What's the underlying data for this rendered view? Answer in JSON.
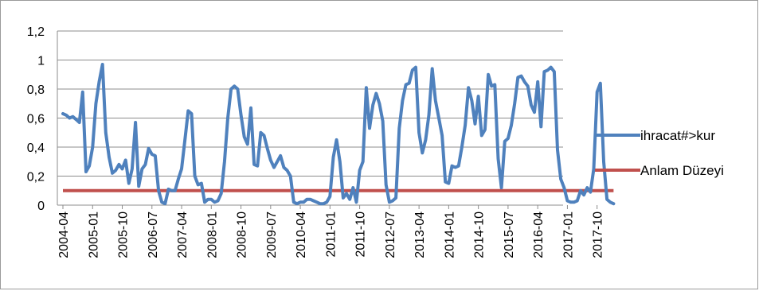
{
  "chart_data": {
    "type": "line",
    "title": "",
    "xlabel": "",
    "ylabel": "",
    "ylim": [
      0,
      1.2
    ],
    "y_ticks": [
      "0",
      "0,2",
      "0,4",
      "0,6",
      "0,8",
      "1",
      "1,2"
    ],
    "x_tick_labels": [
      "2004-04",
      "2005-01",
      "2005-10",
      "2006-07",
      "2007-04",
      "2008-01",
      "2008-10",
      "2009-07",
      "2010-04",
      "2011-01",
      "2011-10",
      "2012-07",
      "2013-04",
      "2014-01",
      "2014-10",
      "2015-07",
      "2016-04",
      "2017-01",
      "2017-10"
    ],
    "grid": "horizontal",
    "legend_position": "right",
    "series": [
      {
        "name": "ihracat#>kur",
        "color": "#4f81bd",
        "values": [
          0.63,
          0.62,
          0.6,
          0.61,
          0.59,
          0.57,
          0.78,
          0.23,
          0.27,
          0.4,
          0.7,
          0.85,
          0.97,
          0.5,
          0.33,
          0.22,
          0.24,
          0.28,
          0.25,
          0.31,
          0.15,
          0.25,
          0.57,
          0.13,
          0.25,
          0.28,
          0.39,
          0.35,
          0.34,
          0.1,
          0.02,
          0.01,
          0.11,
          0.1,
          0.1,
          0.18,
          0.25,
          0.45,
          0.65,
          0.63,
          0.2,
          0.14,
          0.15,
          0.02,
          0.04,
          0.04,
          0.02,
          0.03,
          0.08,
          0.3,
          0.6,
          0.8,
          0.82,
          0.8,
          0.62,
          0.47,
          0.42,
          0.67,
          0.28,
          0.27,
          0.5,
          0.48,
          0.39,
          0.31,
          0.26,
          0.3,
          0.34,
          0.26,
          0.24,
          0.2,
          0.02,
          0.01,
          0.02,
          0.02,
          0.04,
          0.04,
          0.03,
          0.02,
          0.01,
          0.01,
          0.02,
          0.06,
          0.33,
          0.45,
          0.3,
          0.05,
          0.08,
          0.04,
          0.12,
          0.02,
          0.24,
          0.3,
          0.81,
          0.53,
          0.69,
          0.77,
          0.7,
          0.58,
          0.14,
          0.02,
          0.03,
          0.05,
          0.53,
          0.72,
          0.83,
          0.84,
          0.93,
          0.95,
          0.5,
          0.36,
          0.45,
          0.62,
          0.94,
          0.72,
          0.6,
          0.48,
          0.16,
          0.15,
          0.27,
          0.26,
          0.27,
          0.4,
          0.55,
          0.81,
          0.72,
          0.56,
          0.75,
          0.48,
          0.52,
          0.9,
          0.82,
          0.83,
          0.32,
          0.12,
          0.44,
          0.46,
          0.55,
          0.7,
          0.88,
          0.89,
          0.85,
          0.82,
          0.69,
          0.64,
          0.85,
          0.54,
          0.92,
          0.93,
          0.95,
          0.92,
          0.38,
          0.18,
          0.12,
          0.03,
          0.02,
          0.02,
          0.03,
          0.1,
          0.07,
          0.12,
          0.09,
          0.25,
          0.78,
          0.84,
          0.3,
          0.04,
          0.02,
          0.01
        ]
      },
      {
        "name": "Anlam Düzeyi",
        "color": "#c0504d",
        "values": [
          0.1,
          0.1
        ],
        "constant": 0.1
      }
    ]
  }
}
